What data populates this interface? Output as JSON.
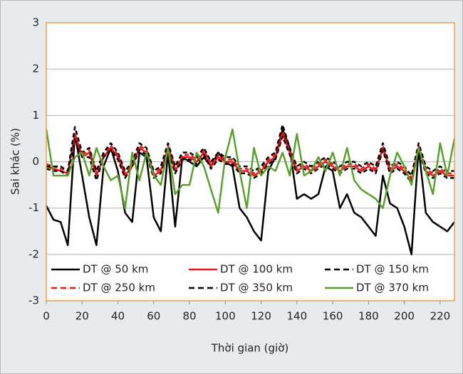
{
  "chart_data": {
    "type": "line",
    "y_label": "Sai khác (%)",
    "x_label": "Thời gian (giờ)",
    "xlim": [
      0,
      228
    ],
    "ylim": [
      -3,
      3
    ],
    "xticks": [
      0,
      20,
      40,
      60,
      80,
      100,
      120,
      140,
      160,
      180,
      200,
      220
    ],
    "yticks": [
      -3,
      -2,
      -1,
      0,
      1,
      2,
      3
    ],
    "grid": true,
    "legend": "bottom",
    "x": [
      0,
      4,
      8,
      12,
      16,
      20,
      24,
      28,
      32,
      36,
      40,
      44,
      48,
      52,
      56,
      60,
      64,
      68,
      72,
      76,
      80,
      84,
      88,
      92,
      96,
      100,
      104,
      108,
      112,
      116,
      120,
      124,
      128,
      132,
      136,
      140,
      144,
      148,
      152,
      156,
      160,
      164,
      168,
      172,
      176,
      180,
      184,
      188,
      192,
      196,
      200,
      204,
      208,
      212,
      216,
      220,
      224,
      228
    ],
    "series": [
      {
        "name": "DT @ 50 km",
        "color": "#000000",
        "dashed": false,
        "values": [
          -0.95,
          -1.25,
          -1.3,
          -1.8,
          0.6,
          -0.3,
          -1.2,
          -1.8,
          -0.1,
          0.3,
          -0.2,
          -1.1,
          -1.3,
          0.2,
          0.1,
          -1.2,
          -1.5,
          0.2,
          -1.4,
          0.1,
          0,
          -0.1,
          0.1,
          -0.1,
          0.2,
          0,
          -0.1,
          -1.0,
          -1.2,
          -1.5,
          -1.7,
          -0.2,
          0.1,
          0.7,
          0.3,
          -0.8,
          -0.7,
          -0.8,
          -0.7,
          -0.1,
          -0.2,
          -1.0,
          -0.7,
          -1.1,
          -1.2,
          -1.4,
          -1.6,
          -0.3,
          -0.9,
          -1.0,
          -1.4,
          -2.0,
          0.3,
          -1.1,
          -1.3,
          -1.4,
          -1.5,
          -1.3
        ]
      },
      {
        "name": "DT @ 100 km",
        "color": "#e8161b",
        "dashed": false,
        "values": [
          -0.1,
          -0.15,
          -0.2,
          -0.25,
          0.6,
          0.1,
          0.2,
          -0.3,
          0.1,
          0.3,
          0.1,
          -0.3,
          -0.1,
          0.3,
          0.2,
          -0.3,
          -0.2,
          0.3,
          -0.2,
          0.1,
          0.1,
          0,
          0.2,
          -0.1,
          0.1,
          0,
          0,
          -0.2,
          -0.2,
          -0.3,
          -0.2,
          0,
          0.1,
          0.6,
          0.2,
          -0.2,
          -0.1,
          -0.2,
          -0.1,
          0,
          -0.1,
          -0.2,
          -0.1,
          -0.1,
          -0.2,
          -0.1,
          -0.2,
          0.3,
          -0.2,
          -0.1,
          -0.2,
          -0.4,
          0.3,
          -0.2,
          -0.3,
          -0.2,
          -0.3,
          -0.3
        ]
      },
      {
        "name": "DT @ 150 km",
        "color": "#000000",
        "dashed": true,
        "values": [
          -0.15,
          -0.2,
          -0.2,
          -0.3,
          0.5,
          0.1,
          0.1,
          -0.4,
          0.1,
          0.25,
          0.05,
          -0.35,
          -0.1,
          0.25,
          0.15,
          -0.35,
          -0.25,
          0.25,
          -0.25,
          0.05,
          0.05,
          -0.05,
          0.15,
          -0.15,
          0.05,
          -0.05,
          -0.05,
          -0.25,
          -0.25,
          -0.35,
          -0.25,
          -0.05,
          0.05,
          0.55,
          0.15,
          -0.25,
          -0.15,
          -0.25,
          -0.15,
          -0.05,
          -0.15,
          -0.25,
          -0.15,
          -0.15,
          -0.25,
          -0.15,
          -0.25,
          0.25,
          -0.25,
          -0.15,
          -0.25,
          -0.45,
          0.25,
          -0.25,
          -0.35,
          -0.25,
          -0.35,
          -0.35
        ]
      },
      {
        "name": "DT @ 250 km",
        "color": "#e8161b",
        "dashed": true,
        "values": [
          -0.05,
          -0.1,
          -0.15,
          -0.2,
          0.55,
          0.15,
          0.25,
          -0.25,
          0.15,
          0.35,
          0.15,
          -0.25,
          -0.05,
          0.35,
          0.25,
          -0.25,
          -0.15,
          0.35,
          -0.15,
          0.15,
          0.15,
          0.05,
          0.25,
          -0.05,
          0.15,
          0.05,
          0.05,
          -0.15,
          -0.15,
          -0.25,
          -0.15,
          0.05,
          0.15,
          0.65,
          0.25,
          -0.15,
          -0.05,
          -0.15,
          -0.05,
          0.05,
          -0.05,
          -0.15,
          -0.05,
          -0.05,
          -0.15,
          -0.05,
          -0.15,
          0.35,
          -0.15,
          -0.05,
          -0.15,
          -0.35,
          0.35,
          -0.15,
          -0.25,
          -0.15,
          -0.25,
          -0.25
        ]
      },
      {
        "name": "DT @ 350 km",
        "color": "#000000",
        "dashed": true,
        "values": [
          -0.1,
          -0.1,
          -0.1,
          -0.2,
          0.75,
          0.2,
          0.3,
          -0.2,
          0.2,
          0.4,
          0.2,
          -0.2,
          0,
          0.4,
          0.3,
          -0.2,
          -0.1,
          0.4,
          -0.1,
          0.2,
          0.2,
          0.1,
          0.3,
          0,
          0.2,
          0.1,
          0.1,
          -0.1,
          -0.1,
          -0.2,
          -0.1,
          0.1,
          0.2,
          0.8,
          0.3,
          -0.1,
          0,
          -0.1,
          0,
          0.1,
          0,
          -0.1,
          0,
          0,
          -0.1,
          0,
          -0.1,
          0.4,
          -0.1,
          0,
          -0.1,
          -0.3,
          0.4,
          -0.1,
          -0.2,
          -0.1,
          -0.2,
          -0.2
        ]
      },
      {
        "name": "DT @ 370 km",
        "color": "#5aa02c",
        "dashed": false,
        "values": [
          0.7,
          -0.3,
          -0.3,
          -0.3,
          0.1,
          0.2,
          -0.3,
          0.3,
          -0.1,
          -0.4,
          -0.3,
          -1.0,
          0.2,
          -0.4,
          0.2,
          -0.3,
          -0.5,
          0.3,
          -0.7,
          -0.5,
          -0.5,
          0.2,
          -0.1,
          -0.6,
          -1.1,
          0.1,
          0.7,
          -0.2,
          -1.0,
          0.3,
          -0.3,
          -0.1,
          -0.2,
          0.2,
          -0.3,
          0.6,
          -0.3,
          -0.2,
          0.1,
          -0.2,
          0.2,
          -0.3,
          0.3,
          -0.4,
          -0.6,
          -0.7,
          -0.8,
          -1.0,
          -0.3,
          0.2,
          -0.1,
          -0.5,
          0.3,
          -0.2,
          -0.7,
          0.4,
          -0.3,
          0.5
        ]
      }
    ]
  }
}
